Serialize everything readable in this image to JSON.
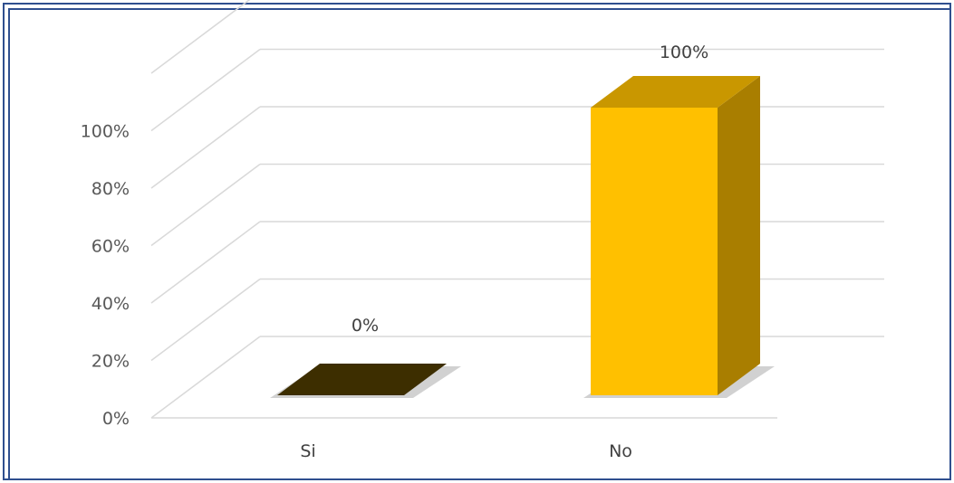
{
  "chart_data": {
    "type": "bar",
    "style": "3d-column",
    "categories": [
      "Si",
      "No"
    ],
    "values": [
      0,
      100
    ],
    "data_labels": [
      "0%",
      "100%"
    ],
    "yticks": [
      "0%",
      "20%",
      "40%",
      "60%",
      "80%",
      "100%"
    ],
    "ylim": [
      0,
      100
    ],
    "grid": true,
    "legend": "none",
    "colors": {
      "si_top": "#3d2e00",
      "no_front": "#ffc000",
      "no_top": "#c99700",
      "no_side": "#a97e00",
      "grid": "#d9d9d9",
      "frame": "#2f4f8f"
    }
  }
}
